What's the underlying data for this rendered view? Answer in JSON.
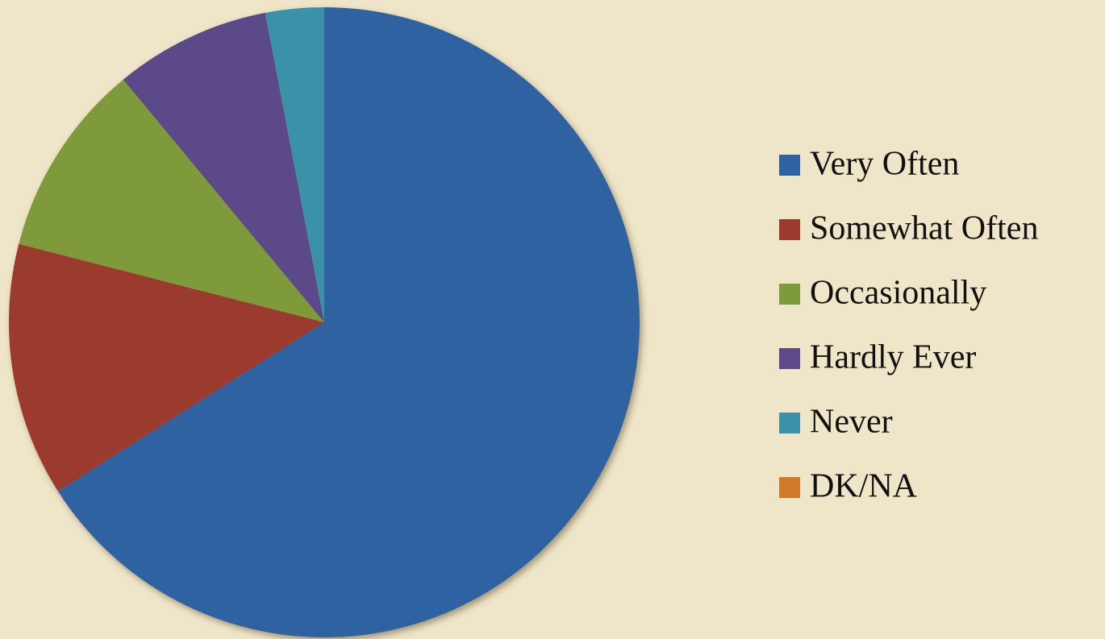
{
  "chart_data": {
    "type": "pie",
    "categories": [
      "Very Often",
      "Somewhat Often",
      "Occasionally",
      "Hardly Ever",
      "Never",
      "DK/NA"
    ],
    "values": [
      66,
      13,
      10,
      8,
      3,
      0
    ],
    "colors": [
      "#2f62a0",
      "#9b3a2f",
      "#7e9a3a",
      "#5c4a89",
      "#3b92a8",
      "#cf7a2b"
    ],
    "legend": "right"
  }
}
